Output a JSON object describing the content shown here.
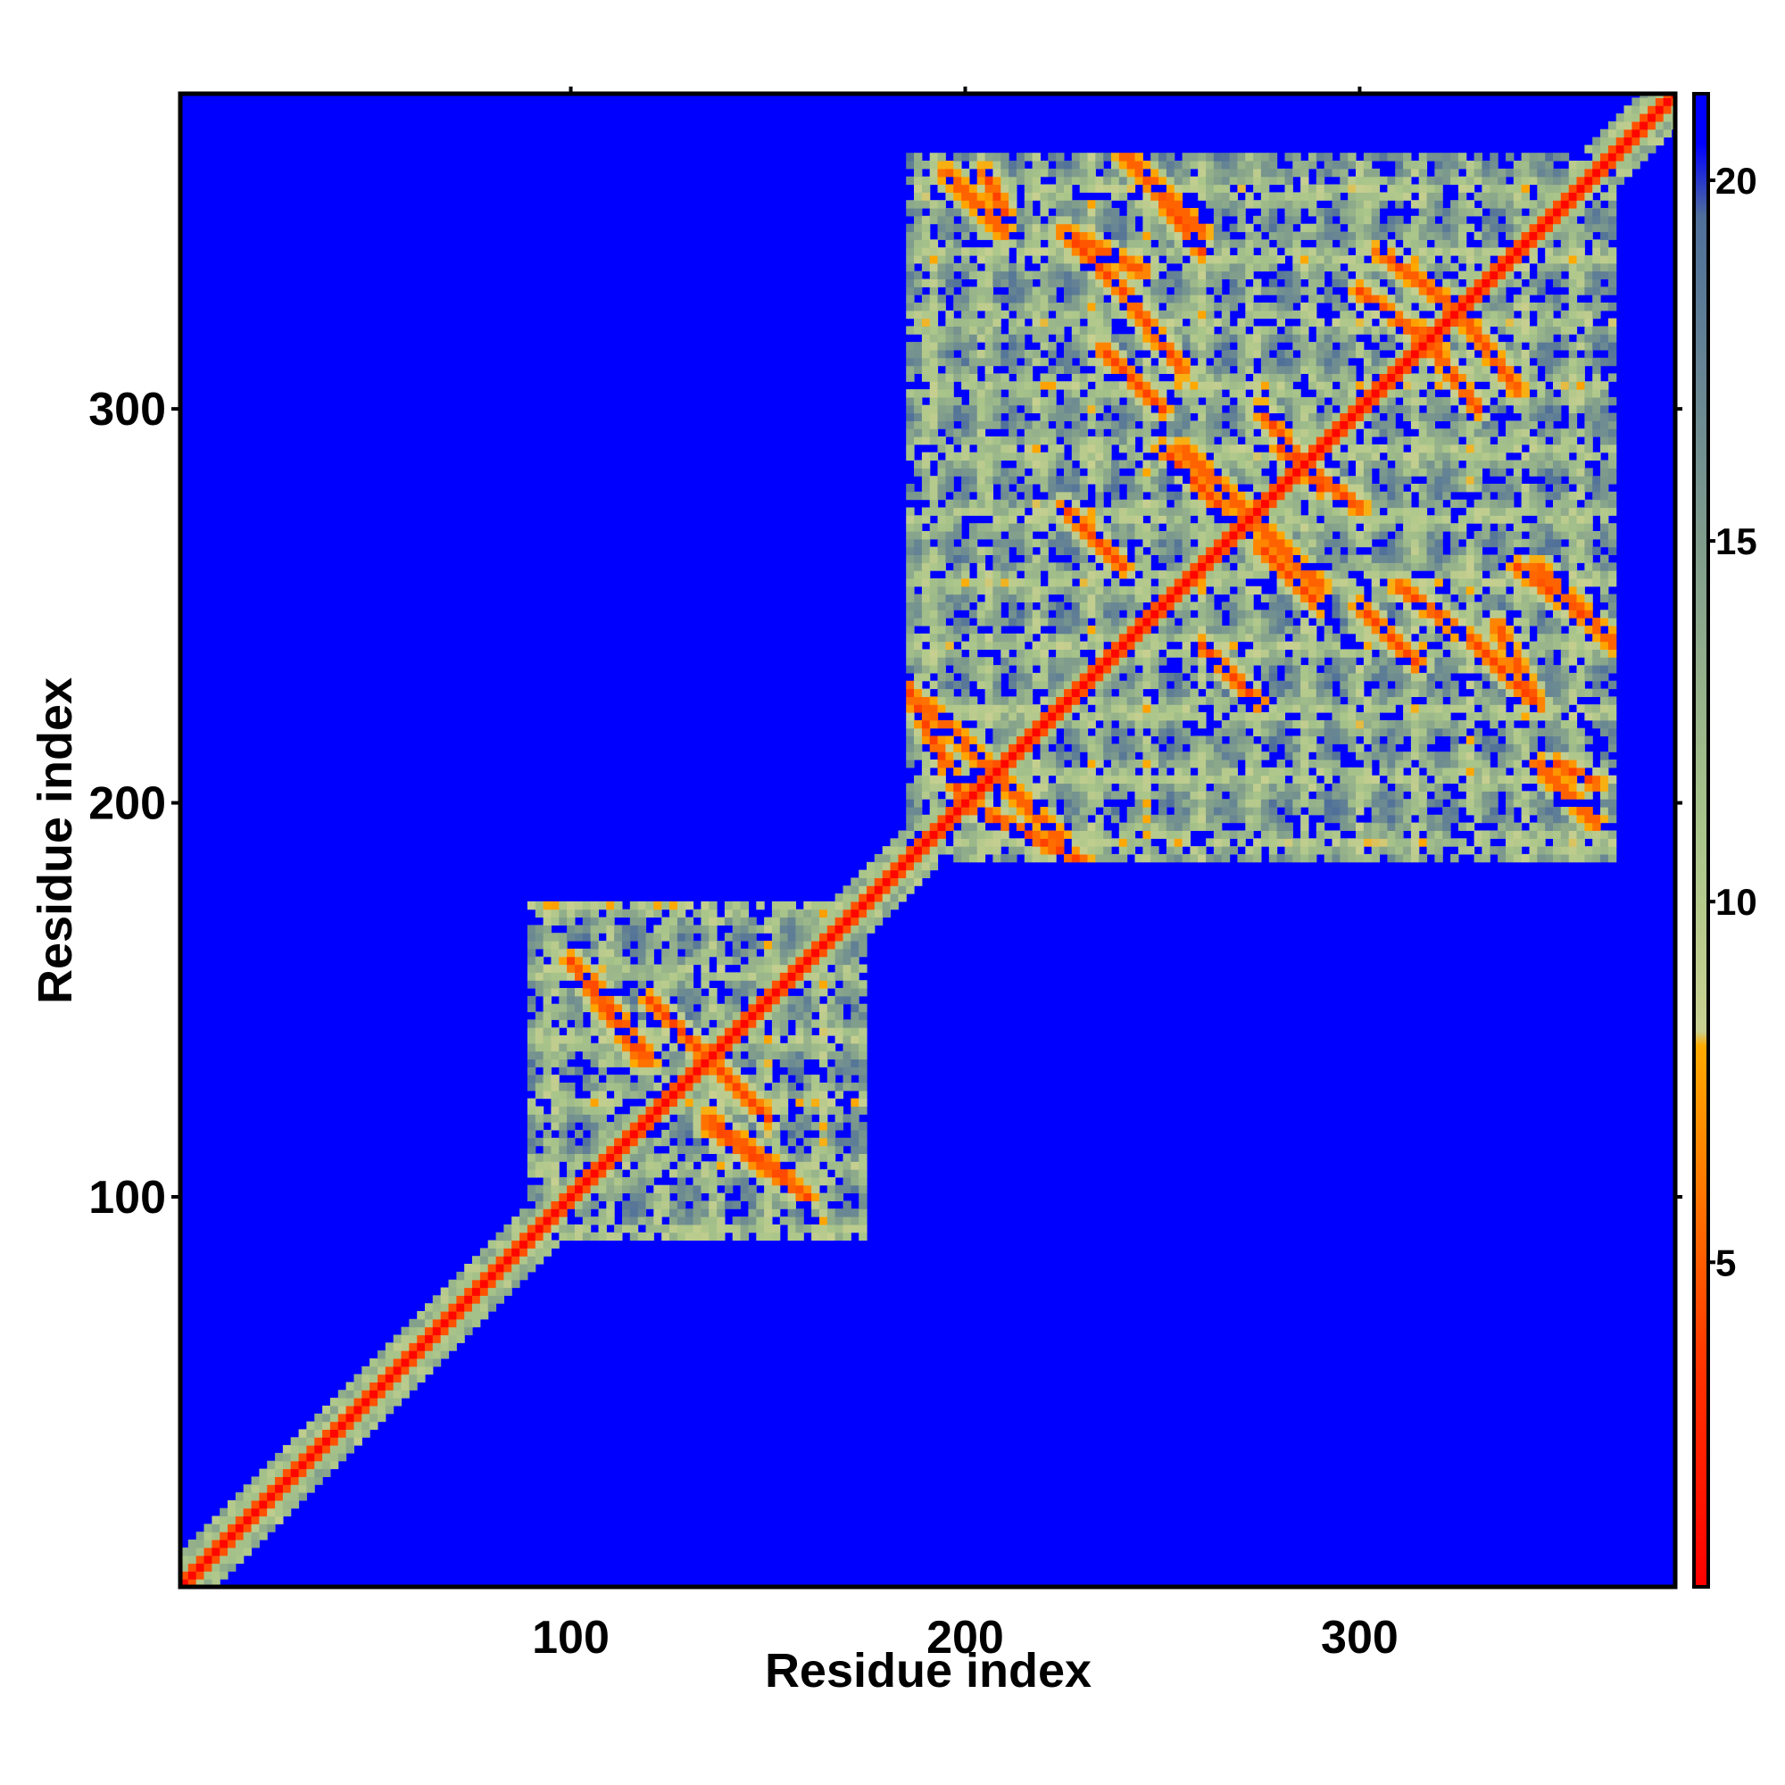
{
  "chart_data": {
    "type": "heatmap",
    "title": "",
    "xlabel": "Residue index",
    "ylabel": "Residue index",
    "xlim": [
      1,
      380
    ],
    "ylim": [
      1,
      380
    ],
    "x_ticks": [
      {
        "value": 100,
        "label": "100"
      },
      {
        "value": 200,
        "label": "200"
      },
      {
        "value": 300,
        "label": "300"
      }
    ],
    "y_ticks": [
      {
        "value": 100,
        "label": "100"
      },
      {
        "value": 200,
        "label": "200"
      },
      {
        "value": 300,
        "label": "300"
      }
    ],
    "colorbar": {
      "range": [
        0.5,
        21.2
      ],
      "ticks": [
        {
          "value": 5,
          "label": "5"
        },
        {
          "value": 10,
          "label": "10"
        },
        {
          "value": 15,
          "label": "15"
        },
        {
          "value": 20,
          "label": "20"
        }
      ],
      "stops": [
        {
          "value": 0.5,
          "color": "#ff0000"
        },
        {
          "value": 3.5,
          "color": "#ff3300"
        },
        {
          "value": 6.0,
          "color": "#ff7700"
        },
        {
          "value": 8.0,
          "color": "#ffaa00"
        },
        {
          "value": 8.2,
          "color": "#c8d090"
        },
        {
          "value": 11.0,
          "color": "#a9c58a"
        },
        {
          "value": 15.0,
          "color": "#7f9c8c"
        },
        {
          "value": 19.5,
          "color": "#4f6f9a"
        },
        {
          "value": 20.5,
          "color": "#0000ff"
        },
        {
          "value": 21.2,
          "color": "#0000ff"
        }
      ]
    },
    "background_value": 21,
    "background_color": "#0000ff",
    "domains": [
      {
        "from": 95,
        "to": 175
      },
      {
        "from": 185,
        "to": 232
      },
      {
        "from": 232,
        "to": 365
      }
    ],
    "off_diagonal_blocks": [
      {
        "x": [
          185,
          230
        ],
        "y": [
          185,
          230
        ]
      },
      {
        "x": [
          185,
          365
        ],
        "y": [
          232,
          365
        ]
      },
      {
        "x": [
          232,
          365
        ],
        "y": [
          185,
          232
        ]
      },
      {
        "x": [
          95,
          175
        ],
        "y": [
          90,
          175
        ]
      }
    ],
    "contact_lines": [
      {
        "x0": 105,
        "y0": 155,
        "x1": 120,
        "y1": 135
      },
      {
        "x0": 135,
        "y0": 118,
        "x1": 160,
        "y1": 100
      },
      {
        "x0": 120,
        "y0": 150,
        "x1": 140,
        "y1": 130
      },
      {
        "x0": 200,
        "y0": 200,
        "x1": 230,
        "y1": 185
      },
      {
        "x0": 190,
        "y0": 225,
        "x1": 210,
        "y1": 205
      },
      {
        "x0": 240,
        "y0": 365,
        "x1": 260,
        "y1": 345
      },
      {
        "x0": 205,
        "y0": 360,
        "x1": 210,
        "y1": 350
      },
      {
        "x0": 225,
        "y0": 345,
        "x1": 245,
        "y1": 335
      },
      {
        "x0": 235,
        "y0": 315,
        "x1": 250,
        "y1": 300
      },
      {
        "x0": 255,
        "y0": 290,
        "x1": 270,
        "y1": 275
      },
      {
        "x0": 275,
        "y0": 265,
        "x1": 290,
        "y1": 250
      },
      {
        "x0": 310,
        "y0": 255,
        "x1": 330,
        "y1": 240
      },
      {
        "x0": 330,
        "y0": 240,
        "x1": 345,
        "y1": 225
      },
      {
        "x0": 300,
        "y0": 330,
        "x1": 320,
        "y1": 315
      },
      {
        "x0": 305,
        "y0": 340,
        "x1": 325,
        "y1": 325
      },
      {
        "x0": 340,
        "y0": 260,
        "x1": 360,
        "y1": 245
      },
      {
        "x0": 345,
        "y0": 210,
        "x1": 360,
        "y1": 195
      },
      {
        "x0": 280,
        "y0": 290,
        "x1": 300,
        "y1": 275
      },
      {
        "x0": 260,
        "y0": 240,
        "x1": 275,
        "y1": 225
      }
    ]
  }
}
